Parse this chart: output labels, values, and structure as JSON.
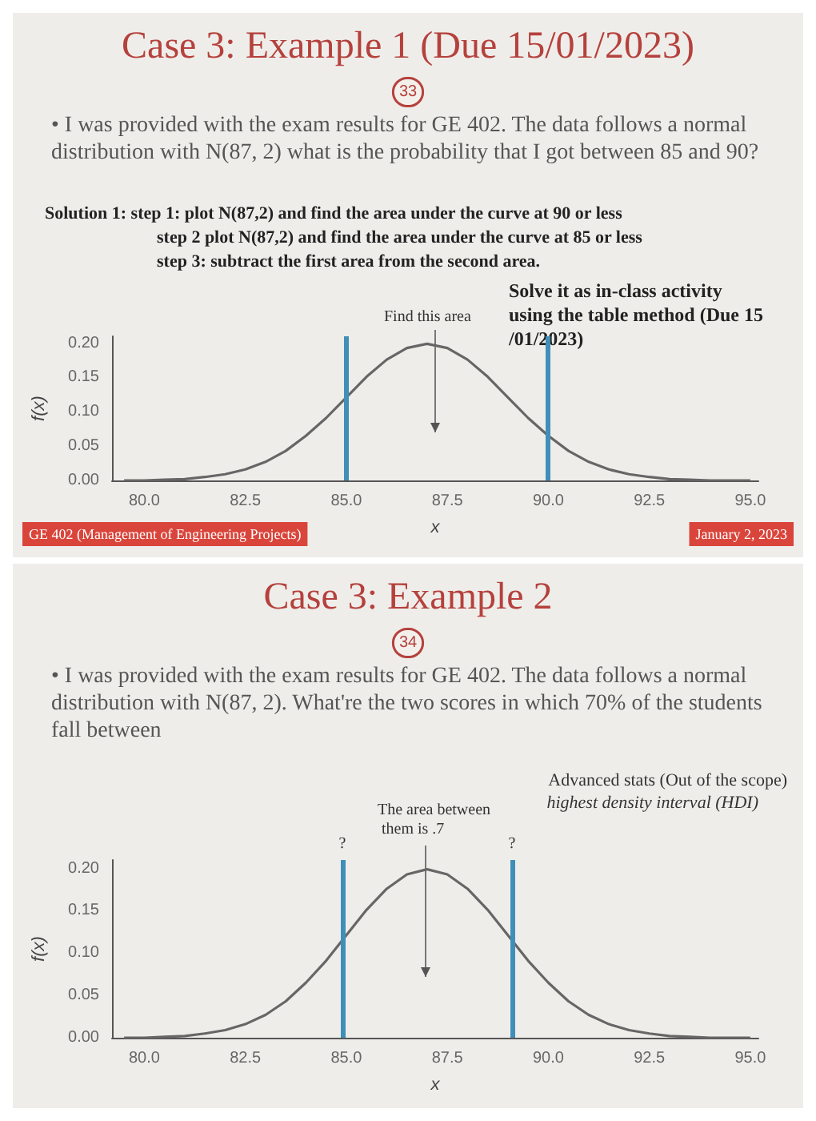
{
  "chart_data": [
    {
      "type": "line",
      "title": "Case 3: Example 1 (Due 15/01/2023)",
      "subtitle": "• I was provided with the exam results for GE 402. The data follows a normal distribution with N(87, 2) what is the probability that I got between 85 and 90?",
      "xlabel": "x",
      "ylabel": "f(x)",
      "x": [
        79.5,
        80,
        80.5,
        81,
        81.5,
        82,
        82.5,
        83,
        83.5,
        84,
        84.5,
        85,
        85.5,
        86,
        86.5,
        87,
        87.5,
        88,
        88.5,
        89,
        89.5,
        90,
        90.5,
        91,
        91.5,
        92,
        92.5,
        93,
        93.5,
        94,
        94.5,
        95
      ],
      "series": [
        {
          "color": "#666666",
          "values": [
            0.0,
            0.0,
            0.001,
            0.002,
            0.005,
            0.009,
            0.016,
            0.027,
            0.043,
            0.065,
            0.091,
            0.121,
            0.151,
            0.176,
            0.193,
            0.199,
            0.193,
            0.176,
            0.151,
            0.121,
            0.091,
            0.065,
            0.043,
            0.027,
            0.016,
            0.009,
            0.005,
            0.002,
            0.001,
            0.0,
            0.0,
            0.0
          ]
        }
      ],
      "xlim": [
        79.2,
        95.2
      ],
      "ylim": [
        0,
        0.21
      ],
      "xticks": [
        {
          "value": 80,
          "label": "80.0"
        },
        {
          "value": 82.5,
          "label": "82.5"
        },
        {
          "value": 85,
          "label": "85.0"
        },
        {
          "value": 87.5,
          "label": "87.5"
        },
        {
          "value": 90,
          "label": "90.0"
        },
        {
          "value": 92.5,
          "label": "92.5"
        },
        {
          "value": 95,
          "label": "95.0"
        }
      ],
      "yticks": [
        {
          "value": 0,
          "label": "0.00"
        },
        {
          "value": 0.05,
          "label": "0.05"
        },
        {
          "value": 0.1,
          "label": "0.10"
        },
        {
          "value": 0.15,
          "label": "0.15"
        },
        {
          "value": 0.2,
          "label": "0.20"
        }
      ],
      "ref_lines": [
        {
          "axis": "x",
          "value": 85,
          "color": "#3f8fb8"
        },
        {
          "axis": "x",
          "value": 90,
          "color": "#3f8fb8"
        }
      ],
      "annotations": [
        "33",
        "Solution 1: step 1: plot N(87,2) and find the area under the curve at 90 or less",
        "step 2 plot N(87,2) and find the area under the curve at 85 or less",
        "step 3: subtract the first area from the second area.",
        "Solve it as in-class activity using the table method (Due 15/01/2023)",
        "GE 402 (Management of Engineering Projects)",
        "January 2, 2023",
        "Find this area"
      ],
      "grid": false,
      "marker": "none",
      "line_style": "solid"
    },
    {
      "type": "line",
      "title": "Case 3: Example 2",
      "subtitle": "• I was provided with the exam results for GE 402. The data follows a normal distribution with N(87, 2). What're the two scores in which 70% of the students fall between",
      "xlabel": "x",
      "ylabel": "f(x)",
      "x": [
        79.5,
        80,
        80.5,
        81,
        81.5,
        82,
        82.5,
        83,
        83.5,
        84,
        84.5,
        85,
        85.5,
        86,
        86.5,
        87,
        87.5,
        88,
        88.5,
        89,
        89.5,
        90,
        90.5,
        91,
        91.5,
        92,
        92.5,
        93,
        93.5,
        94,
        94.5,
        95
      ],
      "series": [
        {
          "color": "#666666",
          "values": [
            0.0,
            0.0,
            0.001,
            0.002,
            0.005,
            0.009,
            0.016,
            0.027,
            0.043,
            0.065,
            0.091,
            0.121,
            0.151,
            0.176,
            0.193,
            0.199,
            0.193,
            0.176,
            0.151,
            0.121,
            0.091,
            0.065,
            0.043,
            0.027,
            0.016,
            0.009,
            0.005,
            0.002,
            0.001,
            0.0,
            0.0,
            0.0
          ]
        }
      ],
      "xlim": [
        79.2,
        95.2
      ],
      "ylim": [
        0,
        0.21
      ],
      "xticks": [
        {
          "value": 80,
          "label": "80.0"
        },
        {
          "value": 82.5,
          "label": "82.5"
        },
        {
          "value": 85,
          "label": "85.0"
        },
        {
          "value": 87.5,
          "label": "87.5"
        },
        {
          "value": 90,
          "label": "90.0"
        },
        {
          "value": 92.5,
          "label": "92.5"
        },
        {
          "value": 95,
          "label": "95.0"
        }
      ],
      "yticks": [
        {
          "value": 0,
          "label": "0.00"
        },
        {
          "value": 0.05,
          "label": "0.05"
        },
        {
          "value": 0.1,
          "label": "0.10"
        },
        {
          "value": 0.15,
          "label": "0.15"
        },
        {
          "value": 0.2,
          "label": "0.20"
        }
      ],
      "ref_lines": [
        {
          "axis": "x",
          "value": 84.9,
          "label": "?",
          "color": "#3f8fb8"
        },
        {
          "axis": "x",
          "value": 89.1,
          "label": "?",
          "color": "#3f8fb8"
        }
      ],
      "annotations": [
        "34",
        "Advanced stats (Out of the scope)",
        "highest density interval (HDI)",
        "The area between them is .7"
      ],
      "grid": false,
      "marker": "none",
      "line_style": "solid"
    }
  ]
}
